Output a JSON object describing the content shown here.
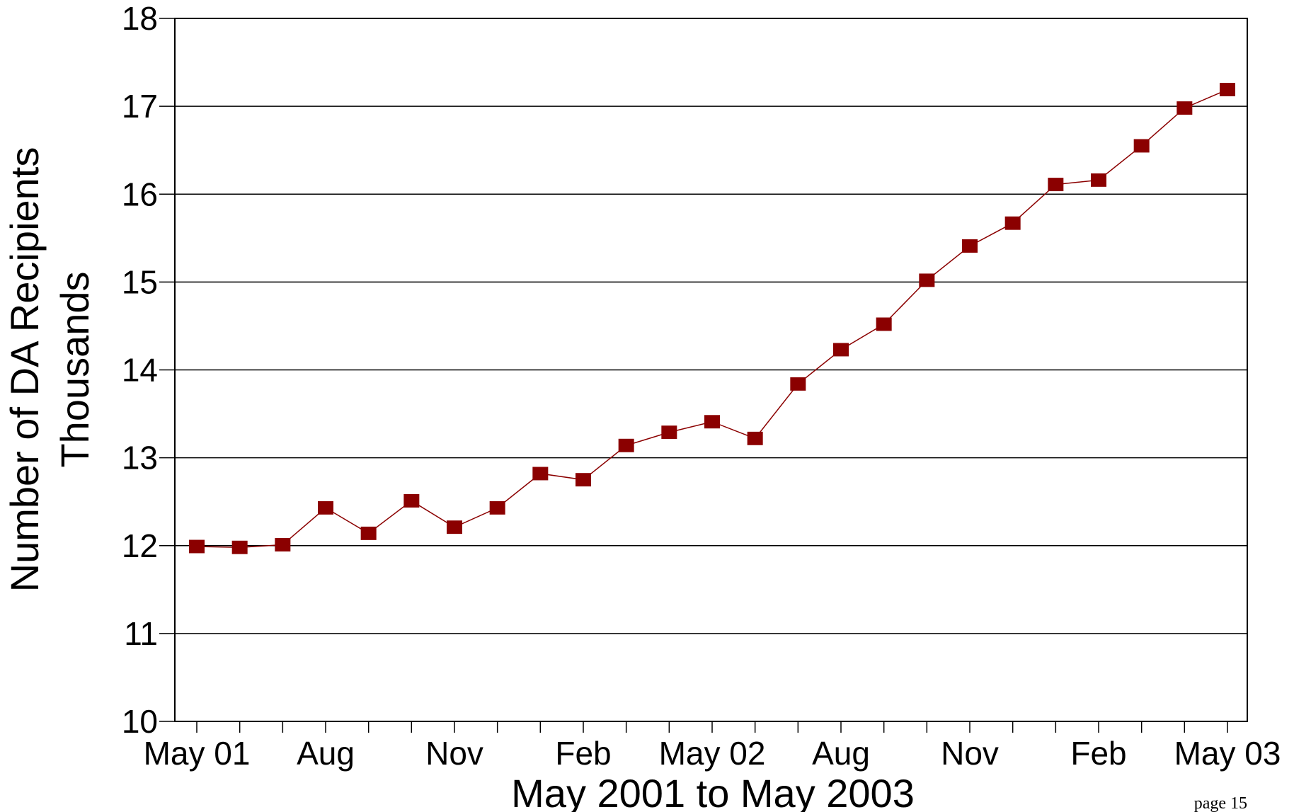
{
  "page_note": "page 15",
  "chart_data": {
    "type": "line",
    "title": "",
    "xlabel": "May 2001 to May 2003",
    "ylabel": "Number of DA Recipients",
    "ylabel_sub": "Thousands",
    "ylim": [
      10,
      18
    ],
    "yticks": [
      10,
      11,
      12,
      13,
      14,
      15,
      16,
      17,
      18
    ],
    "grid": true,
    "x_tick_labels": [
      {
        "index": 0,
        "label": "May 01"
      },
      {
        "index": 3,
        "label": "Aug"
      },
      {
        "index": 6,
        "label": "Nov"
      },
      {
        "index": 9,
        "label": "Feb"
      },
      {
        "index": 12,
        "label": "May 02"
      },
      {
        "index": 15,
        "label": "Aug"
      },
      {
        "index": 18,
        "label": "Nov"
      },
      {
        "index": 21,
        "label": "Feb"
      },
      {
        "index": 24,
        "label": "May 03"
      }
    ],
    "series": [
      {
        "color": "#8b0000",
        "marker": "square",
        "x": [
          "2001-05",
          "2001-06",
          "2001-07",
          "2001-08",
          "2001-09",
          "2001-10",
          "2001-11",
          "2001-12",
          "2002-01",
          "2002-02",
          "2002-03",
          "2002-04",
          "2002-05",
          "2002-06",
          "2002-07",
          "2002-08",
          "2002-09",
          "2002-10",
          "2002-11",
          "2002-12",
          "2003-01",
          "2003-02",
          "2003-03",
          "2003-04",
          "2003-05"
        ],
        "values": [
          11.99,
          11.98,
          12.01,
          12.43,
          12.14,
          12.51,
          12.21,
          12.43,
          12.82,
          12.75,
          13.14,
          13.29,
          13.41,
          13.22,
          13.84,
          14.23,
          14.52,
          15.02,
          15.41,
          15.67,
          16.11,
          16.16,
          16.55,
          16.98,
          17.19
        ]
      }
    ]
  }
}
